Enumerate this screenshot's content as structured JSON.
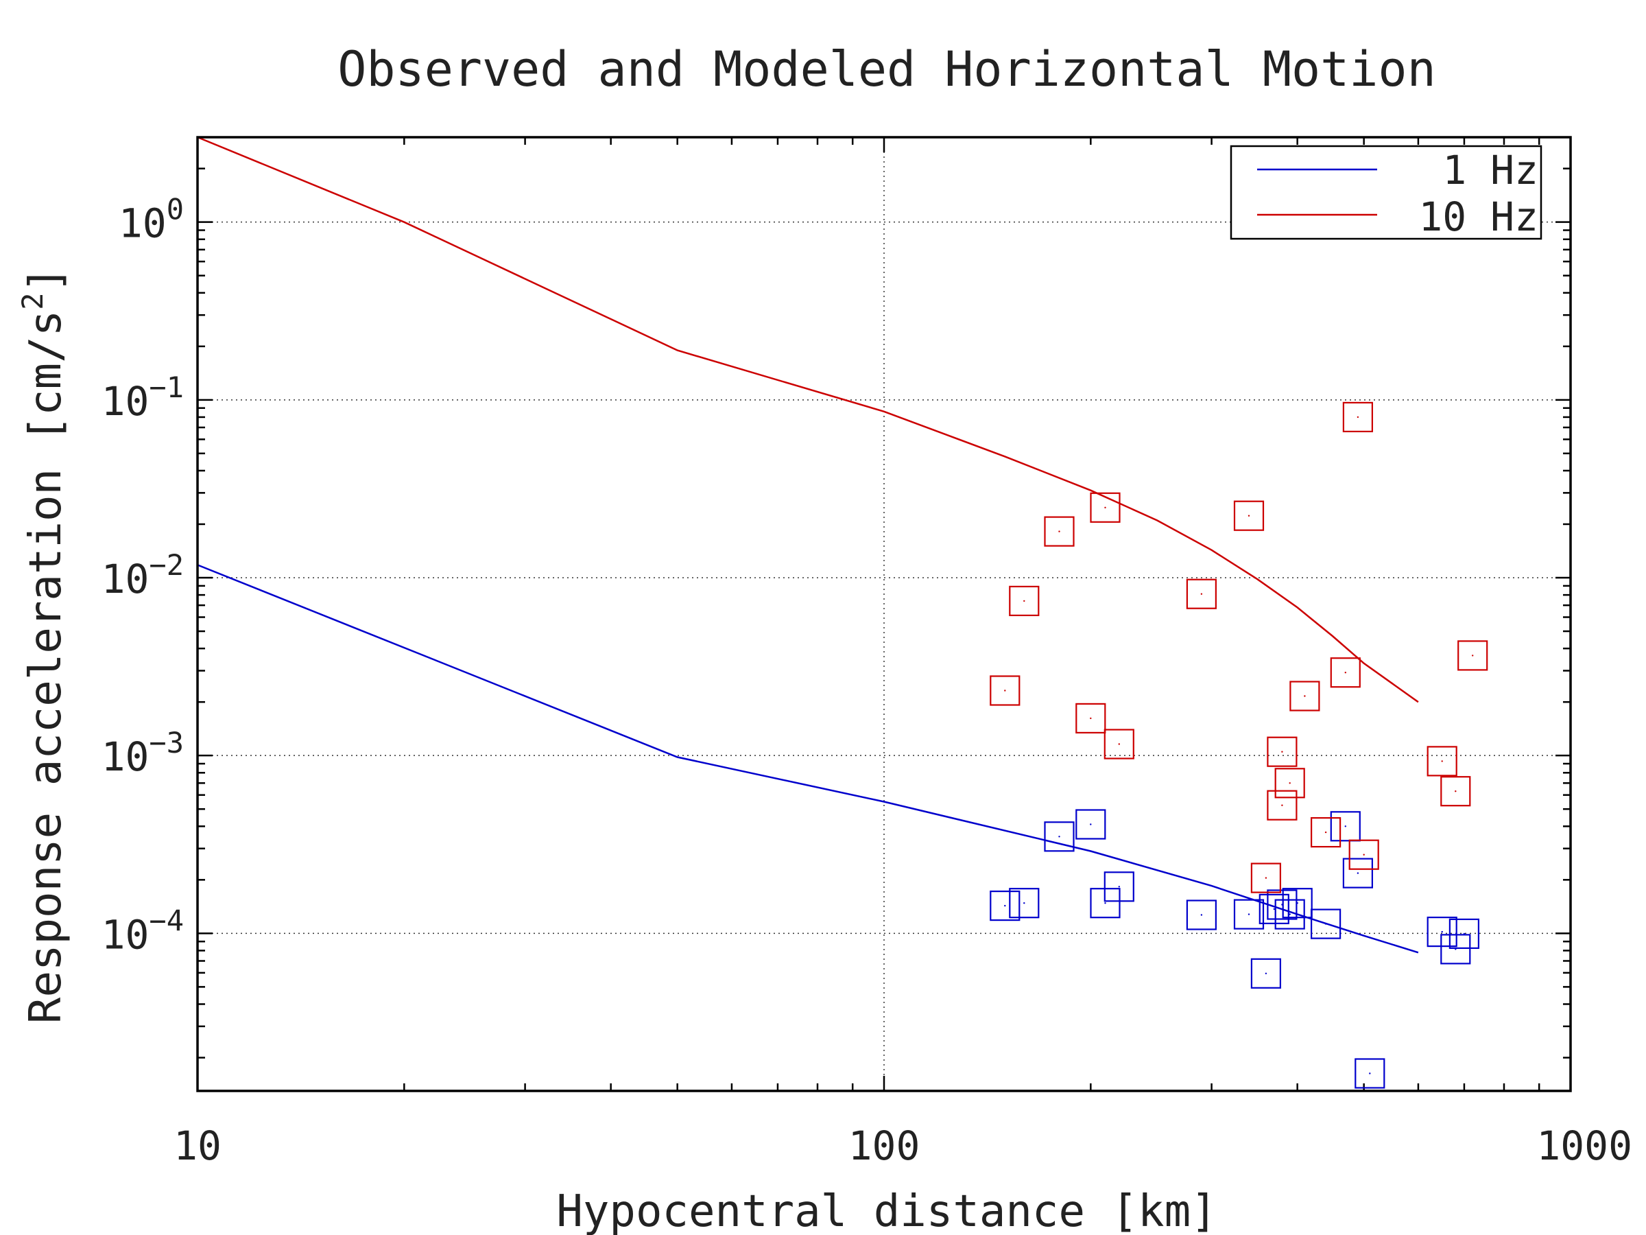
{
  "chart_data": {
    "type": "line",
    "title": "Observed and Modeled Horizontal Motion",
    "xlabel": "Hypocentral distance [km]",
    "ylabel_base": "Response acceleration [cm/s",
    "ylabel_exp": "2",
    "ylabel_close": "]",
    "x_scale": "log",
    "y_scale": "log",
    "xlim": [
      10,
      1000
    ],
    "ylim": [
      1.3e-05,
      3.0
    ],
    "x_ticks": [
      {
        "value": 10,
        "label": "10"
      },
      {
        "value": 100,
        "label": "100"
      },
      {
        "value": 1000,
        "label": "1000"
      }
    ],
    "y_ticks": [
      {
        "value": 1,
        "base": "10",
        "exp": "0"
      },
      {
        "value": 0.1,
        "base": "10",
        "exp": "−1"
      },
      {
        "value": 0.01,
        "base": "10",
        "exp": "−2"
      },
      {
        "value": 0.001,
        "base": "10",
        "exp": "−3"
      },
      {
        "value": 0.0001,
        "base": "10",
        "exp": "−4"
      }
    ],
    "grid": "dotted, at major ticks",
    "legend_position": "top-right",
    "series": [
      {
        "name": "1 Hz",
        "color": "#0000cc",
        "line": {
          "x": [
            10,
            50,
            100,
            200,
            300,
            400,
            500,
            600
          ],
          "y": [
            0.0118,
            0.00098,
            0.00055,
            0.00029,
            0.000185,
            0.000128,
            9.7e-05,
            7.8e-05
          ]
        },
        "observed": {
          "x": [
            150,
            160,
            180,
            200,
            210,
            220,
            290,
            340,
            360,
            370,
            380,
            390,
            400,
            440,
            470,
            490,
            510,
            650,
            680,
            700
          ],
          "y": [
            0.000143,
            0.000148,
            0.00035,
            0.00041,
            0.000148,
            0.000183,
            0.000127,
            0.000128,
            5.95e-05,
            0.000137,
            0.000145,
            0.000128,
            0.000148,
            0.000113,
            0.0004,
            0.000218,
            1.63e-05,
            0.000102,
            8.15e-05,
            9.95e-05
          ]
        }
      },
      {
        "name": "10 Hz",
        "color": "#cc0000",
        "line": {
          "x": [
            10,
            20,
            50,
            100,
            150,
            200,
            250,
            300,
            350,
            400,
            450,
            500,
            600
          ],
          "y": [
            3.0,
            1.0,
            0.19,
            0.086,
            0.048,
            0.031,
            0.021,
            0.0143,
            0.0098,
            0.0068,
            0.0047,
            0.0033,
            0.002
          ]
        },
        "observed": {
          "x": [
            150,
            160,
            180,
            200,
            210,
            220,
            290,
            340,
            360,
            380,
            380,
            390,
            410,
            440,
            470,
            490,
            500,
            650,
            680,
            720
          ],
          "y": [
            0.00232,
            0.0074,
            0.0182,
            0.00162,
            0.0248,
            0.00116,
            0.0081,
            0.0223,
            0.000205,
            0.00105,
            0.000525,
            0.0007,
            0.00216,
            0.00037,
            0.00293,
            0.08,
            0.000277,
            0.00093,
            0.00063,
            0.00365
          ]
        }
      }
    ]
  }
}
